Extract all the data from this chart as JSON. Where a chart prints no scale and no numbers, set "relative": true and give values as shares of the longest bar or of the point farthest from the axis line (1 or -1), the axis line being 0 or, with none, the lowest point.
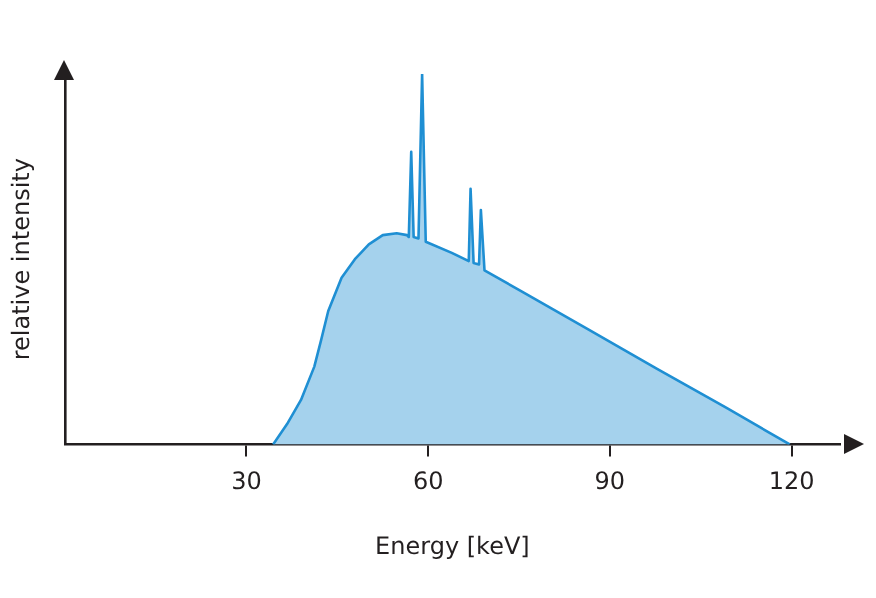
{
  "chart_data": {
    "type": "area",
    "xlabel": "Energy [keV]",
    "ylabel": "relative intensity",
    "relative": true,
    "color": "#1f8fd3",
    "marker": "none",
    "grid": false,
    "legend": false,
    "xlim": [
      0,
      128
    ],
    "xticks": [
      30,
      60,
      90,
      120
    ],
    "x": [
      34.4,
      36.7,
      39,
      41.2,
      42.3,
      43.5,
      45.7,
      47.9,
      50.2,
      52.5,
      54.8,
      56.5,
      56.8,
      57.2,
      57.6,
      58.4,
      59,
      59.6,
      63.9,
      66.7,
      67,
      67.5,
      68.4,
      68.7,
      69.3,
      75.2,
      86.5,
      97.8,
      109.2,
      119.7
    ],
    "values": [
      0,
      0.055,
      0.12,
      0.21,
      0.28,
      0.36,
      0.45,
      0.5,
      0.54,
      0.565,
      0.57,
      0.565,
      0.56,
      0.79,
      0.56,
      0.556,
      1,
      0.547,
      0.517,
      0.495,
      0.69,
      0.49,
      0.486,
      0.633,
      0.47,
      0.415,
      0.31,
      0.204,
      0.099,
      0
    ]
  }
}
